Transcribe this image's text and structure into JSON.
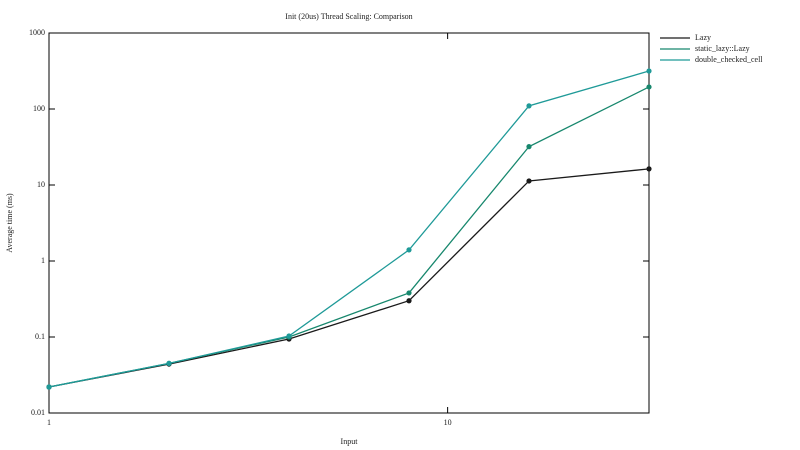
{
  "chart_data": {
    "type": "line",
    "title": "Init (20us) Thread Scaling: Comparison",
    "x_label": "Input",
    "y_label": "Average time (ms)",
    "x": [
      1,
      2,
      4,
      8,
      16,
      32
    ],
    "series": [
      {
        "name": "Lazy",
        "color": "#1a1a1a",
        "values": [
          0.022,
          0.044,
          0.094,
          0.3,
          11.3,
          16.3
        ]
      },
      {
        "name": "static_lazy::Lazy",
        "color": "#17876d",
        "values": [
          0.022,
          0.045,
          0.1,
          0.38,
          32,
          195
        ]
      },
      {
        "name": "double_checked_cell",
        "color": "#1f9a98",
        "values": [
          0.022,
          0.045,
          0.103,
          1.4,
          110,
          316
        ]
      }
    ],
    "xlim": [
      1,
      32
    ],
    "ylim": [
      0.01,
      1000
    ],
    "xticks": [
      1,
      10
    ],
    "yticks": [
      0.01,
      0.1,
      1,
      10,
      100,
      1000
    ],
    "xscale": "log",
    "yscale": "log",
    "grid": false,
    "legend": "right"
  }
}
